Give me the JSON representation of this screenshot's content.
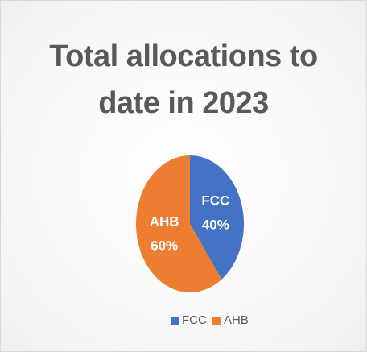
{
  "chart_data": {
    "type": "pie",
    "title": "Total allocations to date in 2023",
    "categories": [
      "FCC",
      "AHB"
    ],
    "values": [
      40,
      60
    ],
    "value_labels": [
      "40%",
      "60%"
    ],
    "colors": [
      "#4472c4",
      "#ed7d31"
    ],
    "legend": "bottom"
  }
}
